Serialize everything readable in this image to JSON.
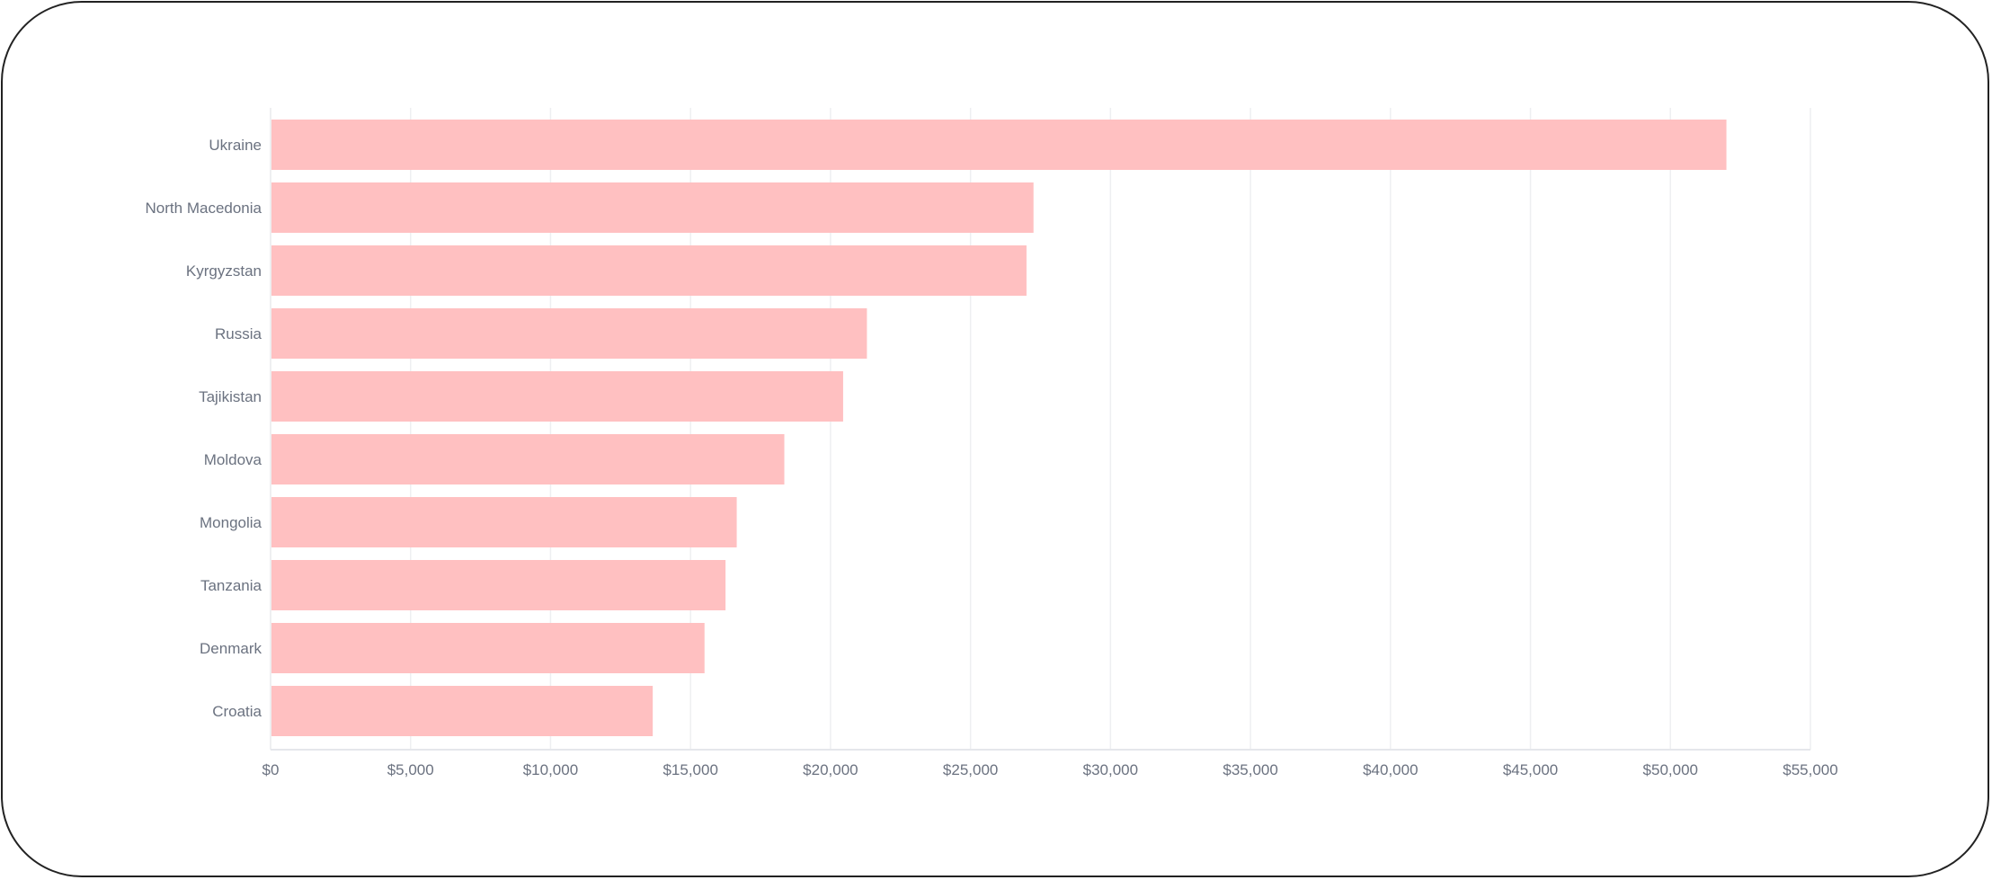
{
  "chart_data": {
    "type": "bar",
    "orientation": "horizontal",
    "title": "",
    "xlabel": "",
    "ylabel": "",
    "categories": [
      "Ukraine",
      "North Macedonia",
      "Kyrgyzstan",
      "Russia",
      "Tajikistan",
      "Moldova",
      "Mongolia",
      "Tanzania",
      "Denmark",
      "Croatia"
    ],
    "values": [
      52000,
      27250,
      27000,
      21300,
      20450,
      18350,
      16650,
      16250,
      15500,
      13650
    ],
    "xlim": [
      0,
      55000
    ],
    "xticks": [
      0,
      5000,
      10000,
      15000,
      20000,
      25000,
      30000,
      35000,
      40000,
      45000,
      50000,
      55000
    ],
    "xtick_labels": [
      "$0",
      "$5,000",
      "$10,000",
      "$15,000",
      "$20,000",
      "$25,000",
      "$30,000",
      "$35,000",
      "$40,000",
      "$45,000",
      "$50,000",
      "$55,000"
    ],
    "grid": true,
    "bar_color": "#ffc0c1"
  }
}
